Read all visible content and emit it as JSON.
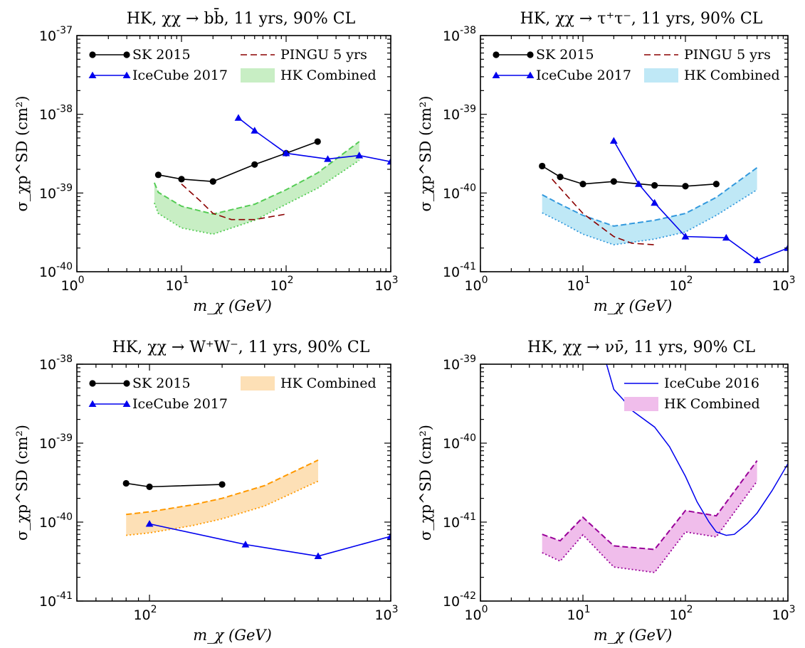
{
  "chart_data": [
    {
      "type": "line",
      "title": "HK, χχ → bb̄, 11 yrs, 90% CL",
      "xlabel": "m_χ (GeV)",
      "ylabel": "σ_χp^SD (cm²)",
      "xscale": "log",
      "yscale": "log",
      "xlim": [
        1,
        1000
      ],
      "ylim": [
        1e-40,
        1e-37
      ],
      "x_ticks": [
        1,
        10,
        100,
        1000
      ],
      "x_tick_labels": [
        "10⁰",
        "10¹",
        "10²",
        "10³"
      ],
      "y_ticks": [
        1e-40,
        1e-39,
        1e-38,
        1e-37
      ],
      "y_tick_labels": [
        "10⁻⁴⁰",
        "10⁻³⁹",
        "10⁻³⁸",
        "10⁻³⁷"
      ],
      "legend_placement": "top",
      "series": [
        {
          "name": "SK 2015",
          "style": "black-line-circles",
          "color": "#000000",
          "x": [
            6,
            10,
            20,
            50,
            100,
            200
          ],
          "y": [
            1.7e-39,
            1.5e-39,
            1.4e-39,
            2.3e-39,
            3.2e-39,
            4.5e-39
          ]
        },
        {
          "name": "IceCube 2017",
          "style": "blue-line-triangles",
          "color": "#0000ee",
          "x": [
            35,
            50,
            100,
            250,
            500,
            1000
          ],
          "y": [
            9e-39,
            6.2e-39,
            3.2e-39,
            2.7e-39,
            3e-39,
            2.5e-39
          ]
        },
        {
          "name": "PINGU 5 yrs",
          "style": "dashed",
          "color": "#8b0000",
          "x": [
            10,
            15,
            20,
            30,
            50,
            100
          ],
          "y": [
            1.3e-39,
            8e-40,
            5.5e-40,
            4.6e-40,
            4.6e-40,
            5.4e-40
          ]
        },
        {
          "name": "HK Combined",
          "style": "band",
          "color": "#55cc55",
          "fill": "#c8eec4",
          "x": [
            5.5,
            6,
            10,
            20,
            50,
            100,
            200,
            500
          ],
          "upper": [
            1.35e-39,
            1.02e-39,
            6.8e-40,
            5.4e-40,
            7.2e-40,
            1.1e-39,
            1.8e-39,
            4.5e-39
          ],
          "lower": [
            7.5e-40,
            5.5e-40,
            3.6e-40,
            3e-40,
            4.5e-40,
            7.2e-40,
            1.15e-39,
            2.6e-39
          ]
        }
      ]
    },
    {
      "type": "line",
      "title": "HK, χχ → τ⁺τ⁻, 11 yrs, 90% CL",
      "xlabel": "m_χ (GeV)",
      "ylabel": "σ_χp^SD (cm²)",
      "xscale": "log",
      "yscale": "log",
      "xlim": [
        1,
        1000
      ],
      "ylim": [
        1e-41,
        1e-38
      ],
      "x_ticks": [
        1,
        10,
        100,
        1000
      ],
      "x_tick_labels": [
        "10⁰",
        "10¹",
        "10²",
        "10³"
      ],
      "y_ticks": [
        1e-41,
        1e-40,
        1e-39,
        1e-38
      ],
      "y_tick_labels": [
        "10⁻⁴¹",
        "10⁻⁴⁰",
        "10⁻³⁹",
        "10⁻³⁸"
      ],
      "legend_placement": "top",
      "series": [
        {
          "name": "SK 2015",
          "style": "black-line-circles",
          "color": "#000000",
          "x": [
            4,
            6,
            10,
            20,
            50,
            100,
            200
          ],
          "y": [
            2.2e-40,
            1.6e-40,
            1.3e-40,
            1.4e-40,
            1.25e-40,
            1.22e-40,
            1.3e-40
          ]
        },
        {
          "name": "IceCube 2017",
          "style": "blue-line-triangles",
          "color": "#0000ee",
          "x": [
            20,
            35,
            50,
            100,
            250,
            500,
            1000
          ],
          "y": [
            4.6e-40,
            1.3e-40,
            7.5e-41,
            2.8e-41,
            2.7e-41,
            1.4e-41,
            2e-41
          ]
        },
        {
          "name": "PINGU 5 yrs",
          "style": "dashed",
          "color": "#8b0000",
          "x": [
            5,
            10,
            20,
            30,
            50
          ],
          "y": [
            1.5e-40,
            5.5e-41,
            2.8e-41,
            2.3e-41,
            2.2e-41
          ]
        },
        {
          "name": "HK Combined",
          "style": "band",
          "color": "#3399dd",
          "fill": "#bfe8f6",
          "x": [
            4,
            6,
            10,
            20,
            50,
            100,
            200,
            500
          ],
          "upper": [
            9.5e-41,
            7.2e-41,
            5.2e-41,
            3.8e-41,
            4.5e-41,
            5.5e-41,
            8.8e-41,
            2.1e-40
          ],
          "lower": [
            5.6e-41,
            4.3e-41,
            3e-41,
            2.2e-41,
            2.6e-41,
            3.2e-41,
            5.2e-41,
            1.1e-40
          ]
        }
      ]
    },
    {
      "type": "line",
      "title": "HK, χχ → W⁺W⁻, 11 yrs, 90% CL",
      "xlabel": "m_χ (GeV)",
      "ylabel": "σ_χp^SD (cm²)",
      "xscale": "log",
      "yscale": "log",
      "xlim": [
        50,
        1000
      ],
      "ylim": [
        1e-41,
        1e-38
      ],
      "x_ticks": [
        100,
        1000
      ],
      "x_tick_labels": [
        "10²",
        "10³"
      ],
      "y_ticks": [
        1e-41,
        1e-40,
        1e-39,
        1e-38
      ],
      "y_tick_labels": [
        "10⁻⁴¹",
        "10⁻⁴⁰",
        "10⁻³⁹",
        "10⁻³⁸"
      ],
      "legend_placement": "top",
      "series": [
        {
          "name": "SK 2015",
          "style": "black-line-circles",
          "color": "#000000",
          "x": [
            80,
            100,
            200
          ],
          "y": [
            3.1e-40,
            2.8e-40,
            3e-40
          ]
        },
        {
          "name": "IceCube 2017",
          "style": "blue-line-triangles",
          "color": "#0000ee",
          "x": [
            100,
            250,
            500,
            1000
          ],
          "y": [
            9.5e-41,
            5.2e-41,
            3.7e-41,
            6.6e-41
          ]
        },
        {
          "name": "HK Combined",
          "style": "band",
          "color": "#ff9900",
          "fill": "#fde0b6",
          "x": [
            80,
            100,
            150,
            200,
            300,
            500
          ],
          "upper": [
            1.25e-40,
            1.35e-40,
            1.65e-40,
            2e-40,
            2.9e-40,
            6.1e-40
          ],
          "lower": [
            6.8e-41,
            7.3e-41,
            9e-41,
            1.1e-40,
            1.6e-40,
            3.3e-40
          ]
        }
      ]
    },
    {
      "type": "line",
      "title": "HK, χχ → νν̄, 11 yrs, 90% CL",
      "xlabel": "m_χ (GeV)",
      "ylabel": "σ_χp^SD (cm²)",
      "xscale": "log",
      "yscale": "log",
      "xlim": [
        1,
        1000
      ],
      "ylim": [
        1e-42,
        1e-39
      ],
      "x_ticks": [
        1,
        10,
        100,
        1000
      ],
      "x_tick_labels": [
        "10⁰",
        "10¹",
        "10²",
        "10³"
      ],
      "y_ticks": [
        1e-42,
        1e-41,
        1e-40,
        1e-39
      ],
      "y_tick_labels": [
        "10⁻⁴²",
        "10⁻⁴¹",
        "10⁻⁴⁰",
        "10⁻³⁹"
      ],
      "legend_placement": "top-right",
      "series": [
        {
          "name": "IceCube 2016",
          "style": "solid",
          "color": "#0000ee",
          "x": [
            17,
            20,
            25,
            30,
            50,
            70,
            100,
            130,
            170,
            200,
            250,
            300,
            400,
            500,
            700,
            1000
          ],
          "y": [
            1e-39,
            4.8e-40,
            3.5e-40,
            2.6e-40,
            1.6e-40,
            9e-41,
            3.8e-41,
            1.8e-41,
            1e-41,
            7.5e-42,
            6.8e-42,
            7e-42,
            9.5e-42,
            1.3e-41,
            2.5e-41,
            5.5e-41
          ]
        },
        {
          "name": "HK Combined",
          "style": "band",
          "color": "#990099",
          "fill": "#f0bdeb",
          "x": [
            4,
            6,
            10,
            20,
            50,
            100,
            200,
            500
          ],
          "upper": [
            7e-42,
            5.8e-42,
            1.15e-41,
            5e-42,
            4.5e-42,
            1.4e-41,
            1.2e-41,
            6e-41
          ],
          "lower": [
            4.1e-42,
            3.2e-42,
            6.9e-42,
            2.7e-42,
            2.3e-42,
            7.5e-42,
            6.5e-42,
            3.3e-41
          ]
        }
      ]
    }
  ]
}
